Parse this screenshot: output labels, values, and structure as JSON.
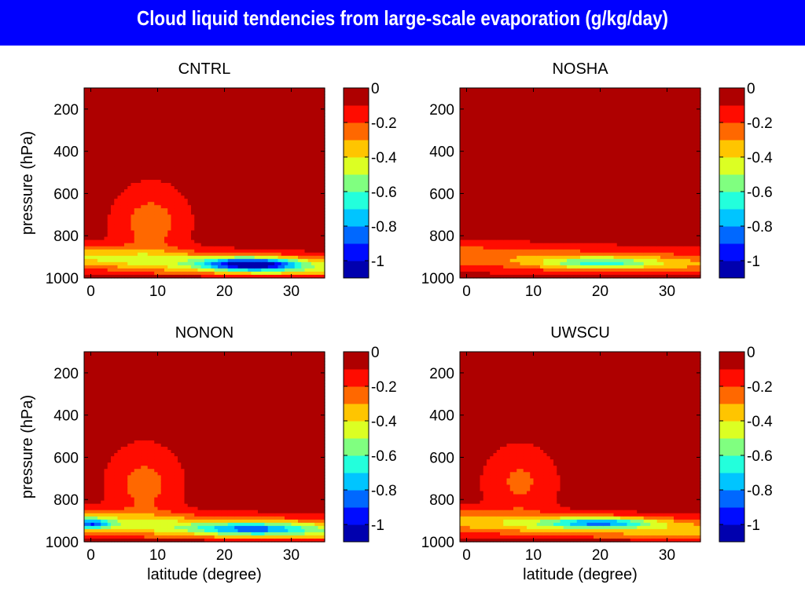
{
  "page_title": "Cloud liquid tendencies from large-scale evaporation (g/kg/day)",
  "colors": {
    "title_bar": "#0000ff",
    "title_text": "#ffffff"
  },
  "colorbar": {
    "colormap": "jet",
    "range": [
      -1.1,
      0
    ],
    "tick_labels": [
      "0",
      "-0.2",
      "-0.4",
      "-0.6",
      "-0.8",
      "-1"
    ],
    "tick_values": [
      0,
      -0.2,
      -0.4,
      -0.6,
      -0.8,
      -1.0
    ]
  },
  "chart_data": [
    {
      "type": "heatmap",
      "title": "CNTRL",
      "xlabel": "",
      "ylabel": "pressure (hPa)",
      "xlim": [
        -1,
        35
      ],
      "ylim": [
        1000,
        100
      ],
      "x_tick_labels": [
        "0",
        "10",
        "20",
        "30"
      ],
      "y_tick_labels": [
        "200",
        "400",
        "600",
        "800",
        "1000"
      ],
      "features": [
        {
          "shape": "blob",
          "lat": 9,
          "p": 740,
          "lat_w": 5,
          "p_w": 160,
          "value": -0.2
        },
        {
          "shape": "band",
          "lat_from": 0,
          "lat_to": 35,
          "p_from": 905,
          "p_to": 960,
          "p_w": 55,
          "value": -0.35
        },
        {
          "shape": "blob",
          "lat": 24,
          "p": 935,
          "lat_w": 7,
          "p_w": 30,
          "value": -0.78
        }
      ]
    },
    {
      "type": "heatmap",
      "title": "NOSHA",
      "xlabel": "",
      "ylabel": "",
      "xlim": [
        -1,
        35
      ],
      "ylim": [
        1000,
        100
      ],
      "x_tick_labels": [
        "0",
        "10",
        "20",
        "30"
      ],
      "y_tick_labels": [
        "200",
        "400",
        "600",
        "800",
        "1000"
      ],
      "features": [
        {
          "shape": "band",
          "lat_from": 0,
          "lat_to": 35,
          "p_from": 895,
          "p_to": 935,
          "p_w": 60,
          "value": -0.22
        },
        {
          "shape": "blob",
          "lat": 20,
          "p": 930,
          "lat_w": 9,
          "p_w": 28,
          "value": -0.38
        }
      ]
    },
    {
      "type": "heatmap",
      "title": "NONON",
      "xlabel": "latitude (degree)",
      "ylabel": "pressure (hPa)",
      "xlim": [
        -1,
        35
      ],
      "ylim": [
        1000,
        100
      ],
      "x_tick_labels": [
        "0",
        "10",
        "20",
        "30"
      ],
      "y_tick_labels": [
        "200",
        "400",
        "600",
        "800",
        "1000"
      ],
      "features": [
        {
          "shape": "blob",
          "lat": 8,
          "p": 730,
          "lat_w": 5,
          "p_w": 170,
          "value": -0.18
        },
        {
          "shape": "band",
          "lat_from": 0,
          "lat_to": 35,
          "p_from": 910,
          "p_to": 950,
          "p_w": 55,
          "value": -0.35
        },
        {
          "shape": "blob",
          "lat": 0,
          "p": 915,
          "lat_w": 3,
          "p_w": 25,
          "value": -0.5
        },
        {
          "shape": "blob",
          "lat": 24,
          "p": 940,
          "lat_w": 9,
          "p_w": 30,
          "value": -0.45
        }
      ]
    },
    {
      "type": "heatmap",
      "title": "UWSCU",
      "xlabel": "latitude (degree)",
      "ylabel": "",
      "xlim": [
        -1,
        35
      ],
      "ylim": [
        1000,
        100
      ],
      "x_tick_labels": [
        "0",
        "10",
        "20",
        "30"
      ],
      "y_tick_labels": [
        "200",
        "400",
        "600",
        "800",
        "1000"
      ],
      "features": [
        {
          "shape": "blob",
          "lat": 8,
          "p": 720,
          "lat_w": 5,
          "p_w": 160,
          "value": -0.16
        },
        {
          "shape": "band",
          "lat_from": 0,
          "lat_to": 35,
          "p_from": 905,
          "p_to": 950,
          "p_w": 55,
          "value": -0.3
        },
        {
          "shape": "blob",
          "lat": 20,
          "p": 910,
          "lat_w": 8,
          "p_w": 25,
          "value": -0.52
        }
      ]
    }
  ]
}
